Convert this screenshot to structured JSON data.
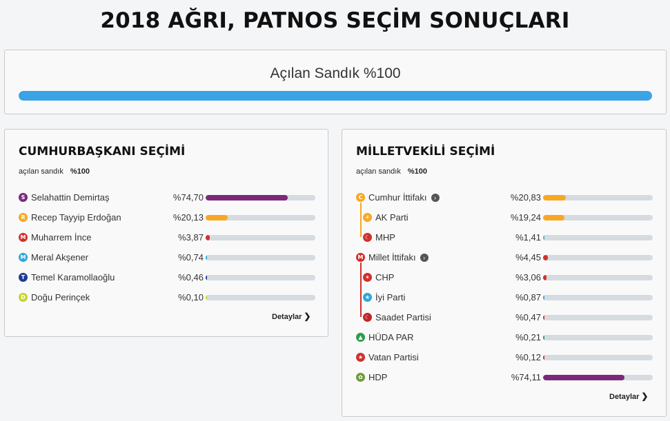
{
  "page": {
    "title": "2018 AĞRI, PATNOS SEÇİM SONUÇLARI"
  },
  "progress": {
    "label": "Açılan Sandık %100",
    "value": 100,
    "color": "#3ba3e6"
  },
  "presidential": {
    "title": "CUMHURBAŞKANI SEÇİMİ",
    "sub_label": "açılan sandık",
    "sub_value": "%100",
    "details_label": "Detaylar",
    "candidates": [
      {
        "letter": "S",
        "name": "Selahattin Demirtaş",
        "pct": "%74,70",
        "value": 74.7,
        "color": "#7b2a7a"
      },
      {
        "letter": "R",
        "name": "Recep Tayyip Erdoğan",
        "pct": "%20,13",
        "value": 20.13,
        "color": "#f7a823"
      },
      {
        "letter": "M",
        "name": "Muharrem İnce",
        "pct": "%3,87",
        "value": 3.87,
        "color": "#d0312d"
      },
      {
        "letter": "M",
        "name": "Meral Akşener",
        "pct": "%0,74",
        "value": 0.74,
        "color": "#2ea8d8"
      },
      {
        "letter": "T",
        "name": "Temel Karamollaoğlu",
        "pct": "%0,46",
        "value": 0.46,
        "color": "#1f3a8f"
      },
      {
        "letter": "D",
        "name": "Doğu Perinçek",
        "pct": "%0,10",
        "value": 0.1,
        "color": "#c7d42c"
      }
    ]
  },
  "parliament": {
    "title": "MİLLETVEKİLİ SEÇİMİ",
    "sub_label": "açılan sandık",
    "sub_value": "%100",
    "details_label": "Detaylar",
    "rows": [
      {
        "name": "Cumhur İttifakı",
        "pct": "%20,83",
        "value": 20.83,
        "color": "#f7a823",
        "icon": "C",
        "iconColor": "#f7a823",
        "alliance": true,
        "sub": false
      },
      {
        "name": "AK Parti",
        "pct": "%19,24",
        "value": 19.24,
        "color": "#f7a823",
        "icon": "☀",
        "iconColor": "#f7a823",
        "alliance": false,
        "sub": true
      },
      {
        "name": "MHP",
        "pct": "%1,41",
        "value": 1.41,
        "color": "#28c2c8",
        "icon": "☾",
        "iconColor": "#d0312d",
        "alliance": false,
        "sub": true
      },
      {
        "name": "Millet İttifakı",
        "pct": "%4,45",
        "value": 4.45,
        "color": "#d0312d",
        "icon": "M",
        "iconColor": "#d0312d",
        "alliance": true,
        "sub": false
      },
      {
        "name": "CHP",
        "pct": "%3,06",
        "value": 3.06,
        "color": "#d0312d",
        "icon": "✶",
        "iconColor": "#d0312d",
        "alliance": false,
        "sub": true
      },
      {
        "name": "İyi Parti",
        "pct": "%0,87",
        "value": 0.87,
        "color": "#2ea8d8",
        "icon": "★",
        "iconColor": "#2ea8d8",
        "alliance": false,
        "sub": true
      },
      {
        "name": "Saadet Partisi",
        "pct": "%0,47",
        "value": 0.47,
        "color": "#d0312d",
        "icon": "☾",
        "iconColor": "#c0262b",
        "alliance": false,
        "sub": true
      },
      {
        "name": "HÜDA PAR",
        "pct": "%0,21",
        "value": 0.21,
        "color": "#2e9c4d",
        "icon": "▲",
        "iconColor": "#2e9c4d",
        "alliance": false,
        "sub": false
      },
      {
        "name": "Vatan Partisi",
        "pct": "%0,12",
        "value": 0.12,
        "color": "#d0312d",
        "icon": "★",
        "iconColor": "#d0312d",
        "alliance": false,
        "sub": false
      },
      {
        "name": "HDP",
        "pct": "%74,11",
        "value": 74.11,
        "color": "#7b2a7a",
        "icon": "✿",
        "iconColor": "#6e9c3a",
        "alliance": false,
        "sub": false
      }
    ]
  }
}
